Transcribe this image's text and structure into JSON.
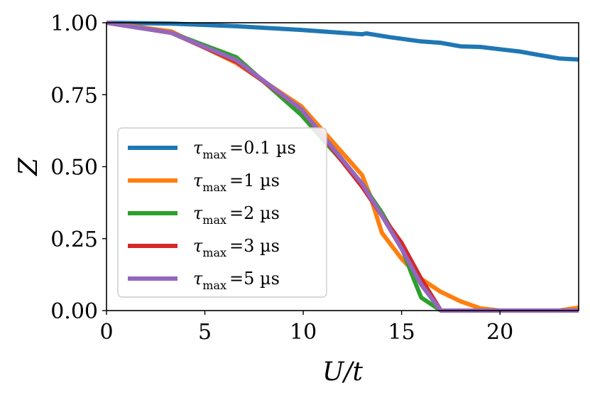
{
  "chart_data": {
    "type": "line",
    "xlabel": "U/t",
    "ylabel": "Z",
    "xlim": [
      0,
      24
    ],
    "ylim": [
      0,
      1
    ],
    "xticks": [
      "0",
      "5",
      "10",
      "15",
      "20"
    ],
    "yticks": [
      "0.00",
      "0.25",
      "0.50",
      "0.75",
      "1.00"
    ],
    "grid": false,
    "legend_position": "lower-left",
    "series": [
      {
        "name": "τmax =0.1 µs",
        "legend": {
          "symbol": "τ",
          "sub": "max",
          "value": "=0.1 µs"
        },
        "color": "#1f77b4",
        "x": [
          0,
          3.3,
          6.6,
          9.9,
          13.0,
          13.2,
          14.4,
          16.0,
          17.0,
          18.0,
          19.0,
          20.0,
          21.0,
          22.0,
          23.0,
          24.0
        ],
        "y": [
          1.0,
          0.997,
          0.988,
          0.975,
          0.96,
          0.963,
          0.95,
          0.935,
          0.93,
          0.918,
          0.916,
          0.908,
          0.9,
          0.888,
          0.876,
          0.872
        ]
      },
      {
        "name": "τmax =1 µs",
        "legend": {
          "symbol": "τ",
          "sub": "max",
          "value": "=1 µs"
        },
        "color": "#ff7f0e",
        "x": [
          0,
          3.3,
          6.6,
          9.9,
          13.0,
          13.4,
          14.0,
          15.0,
          16.0,
          17.0,
          18.0,
          19.0,
          20.0,
          21.0,
          22.0,
          23.0,
          24.0
        ],
        "y": [
          1.0,
          0.97,
          0.86,
          0.71,
          0.47,
          0.4,
          0.27,
          0.18,
          0.11,
          0.065,
          0.032,
          0.008,
          0.0,
          0.0,
          0.0,
          0.0,
          0.01
        ]
      },
      {
        "name": "τmax =2 µs",
        "legend": {
          "symbol": "τ",
          "sub": "max",
          "value": "=2 µs"
        },
        "color": "#2ca02c",
        "x": [
          0,
          3.3,
          6.6,
          9.9,
          13.0,
          14.0,
          15.0,
          15.5,
          16.0,
          17.0
        ],
        "y": [
          1.0,
          0.965,
          0.88,
          0.68,
          0.44,
          0.34,
          0.22,
          0.13,
          0.045,
          0.0
        ]
      },
      {
        "name": "τmax =3 µs",
        "legend": {
          "symbol": "τ",
          "sub": "max",
          "value": "=3 µs"
        },
        "color": "#d62728",
        "x": [
          0,
          3.3,
          6.6,
          9.9,
          13.0,
          14.0,
          15.0,
          16.0,
          17.0
        ],
        "y": [
          1.0,
          0.965,
          0.865,
          0.7,
          0.43,
          0.33,
          0.235,
          0.11,
          0.0
        ]
      },
      {
        "name": "τmax =5 µs",
        "legend": {
          "symbol": "τ",
          "sub": "max",
          "value": "=5 µs"
        },
        "color": "#9467bd",
        "x": [
          0,
          3.3,
          6.6,
          9.9,
          13.0,
          14.0,
          15.0,
          16.0,
          17.0,
          24.0
        ],
        "y": [
          1.0,
          0.965,
          0.87,
          0.7,
          0.44,
          0.33,
          0.215,
          0.09,
          0.0,
          0.0
        ]
      }
    ]
  }
}
